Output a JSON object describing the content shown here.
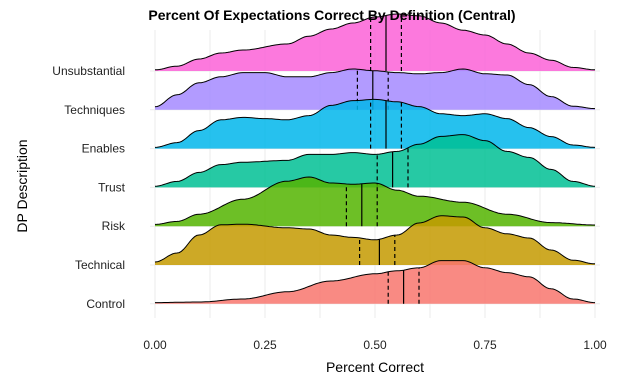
{
  "chart_data": {
    "type": "ridgeline",
    "title": "Percent Of Expectations Correct By Definition (Central)",
    "xlabel": "Percent Correct",
    "ylabel": "DP Description",
    "xlim": [
      0,
      1
    ],
    "x_ticks": [
      "0.00",
      "0.25",
      "0.50",
      "0.75",
      "1.00"
    ],
    "x_tick_values": [
      0,
      0.25,
      0.5,
      0.75,
      1.0
    ],
    "grid": true,
    "legend": "none",
    "categories": [
      "Control",
      "Technical",
      "Risk",
      "Trust",
      "Enables",
      "Techniques",
      "Unsubstantial"
    ],
    "series": [
      {
        "name": "Control",
        "color": "#F8766D",
        "quantiles": [
          0.53,
          0.565,
          0.6
        ],
        "density": [
          [
            0,
            0.02
          ],
          [
            0.1,
            0.03
          ],
          [
            0.2,
            0.08
          ],
          [
            0.3,
            0.2
          ],
          [
            0.4,
            0.38
          ],
          [
            0.5,
            0.5
          ],
          [
            0.55,
            0.55
          ],
          [
            0.6,
            0.6
          ],
          [
            0.65,
            0.72
          ],
          [
            0.7,
            0.72
          ],
          [
            0.75,
            0.6
          ],
          [
            0.8,
            0.52
          ],
          [
            0.85,
            0.45
          ],
          [
            0.9,
            0.25
          ],
          [
            0.95,
            0.08
          ],
          [
            1.0,
            0.02
          ]
        ]
      },
      {
        "name": "Technical",
        "color": "#C49A00",
        "quantiles": [
          0.465,
          0.51,
          0.545
        ],
        "density": [
          [
            0,
            0.05
          ],
          [
            0.05,
            0.2
          ],
          [
            0.1,
            0.5
          ],
          [
            0.15,
            0.67
          ],
          [
            0.2,
            0.68
          ],
          [
            0.3,
            0.62
          ],
          [
            0.35,
            0.6
          ],
          [
            0.4,
            0.5
          ],
          [
            0.45,
            0.46
          ],
          [
            0.5,
            0.42
          ],
          [
            0.55,
            0.5
          ],
          [
            0.6,
            0.7
          ],
          [
            0.65,
            0.82
          ],
          [
            0.7,
            0.8
          ],
          [
            0.75,
            0.62
          ],
          [
            0.8,
            0.52
          ],
          [
            0.85,
            0.45
          ],
          [
            0.9,
            0.25
          ],
          [
            0.95,
            0.08
          ],
          [
            1.0,
            0.02
          ]
        ]
      },
      {
        "name": "Risk",
        "color": "#53B400",
        "quantiles": [
          0.435,
          0.47,
          0.505
        ],
        "density": [
          [
            0,
            0.03
          ],
          [
            0.05,
            0.08
          ],
          [
            0.1,
            0.2
          ],
          [
            0.2,
            0.45
          ],
          [
            0.3,
            0.75
          ],
          [
            0.35,
            0.82
          ],
          [
            0.4,
            0.72
          ],
          [
            0.45,
            0.7
          ],
          [
            0.5,
            0.72
          ],
          [
            0.55,
            0.6
          ],
          [
            0.6,
            0.5
          ],
          [
            0.7,
            0.4
          ],
          [
            0.8,
            0.2
          ],
          [
            0.9,
            0.06
          ],
          [
            1.0,
            0.02
          ]
        ]
      },
      {
        "name": "Trust",
        "color": "#00C094",
        "quantiles": [
          0.505,
          0.54,
          0.575
        ],
        "density": [
          [
            0,
            0.02
          ],
          [
            0.05,
            0.1
          ],
          [
            0.1,
            0.25
          ],
          [
            0.15,
            0.38
          ],
          [
            0.2,
            0.42
          ],
          [
            0.3,
            0.45
          ],
          [
            0.35,
            0.55
          ],
          [
            0.4,
            0.55
          ],
          [
            0.45,
            0.58
          ],
          [
            0.5,
            0.55
          ],
          [
            0.55,
            0.6
          ],
          [
            0.6,
            0.72
          ],
          [
            0.65,
            0.85
          ],
          [
            0.7,
            0.88
          ],
          [
            0.75,
            0.78
          ],
          [
            0.8,
            0.6
          ],
          [
            0.85,
            0.5
          ],
          [
            0.9,
            0.3
          ],
          [
            0.95,
            0.1
          ],
          [
            1.0,
            0.02
          ]
        ]
      },
      {
        "name": "Enables",
        "color": "#00B6EB",
        "quantiles": [
          0.49,
          0.525,
          0.56
        ],
        "density": [
          [
            0,
            0.02
          ],
          [
            0.05,
            0.1
          ],
          [
            0.1,
            0.3
          ],
          [
            0.15,
            0.48
          ],
          [
            0.2,
            0.52
          ],
          [
            0.25,
            0.5
          ],
          [
            0.3,
            0.48
          ],
          [
            0.35,
            0.55
          ],
          [
            0.4,
            0.72
          ],
          [
            0.45,
            0.8
          ],
          [
            0.5,
            0.82
          ],
          [
            0.55,
            0.78
          ],
          [
            0.6,
            0.7
          ],
          [
            0.65,
            0.58
          ],
          [
            0.7,
            0.55
          ],
          [
            0.75,
            0.58
          ],
          [
            0.8,
            0.5
          ],
          [
            0.85,
            0.35
          ],
          [
            0.9,
            0.2
          ],
          [
            0.95,
            0.06
          ],
          [
            1.0,
            0.02
          ]
        ]
      },
      {
        "name": "Techniques",
        "color": "#A58AFF",
        "quantiles": [
          0.46,
          0.495,
          0.53
        ],
        "density": [
          [
            0,
            0.05
          ],
          [
            0.05,
            0.25
          ],
          [
            0.1,
            0.45
          ],
          [
            0.15,
            0.55
          ],
          [
            0.2,
            0.62
          ],
          [
            0.25,
            0.62
          ],
          [
            0.3,
            0.55
          ],
          [
            0.35,
            0.55
          ],
          [
            0.4,
            0.62
          ],
          [
            0.45,
            0.68
          ],
          [
            0.5,
            0.65
          ],
          [
            0.55,
            0.62
          ],
          [
            0.6,
            0.6
          ],
          [
            0.65,
            0.62
          ],
          [
            0.7,
            0.68
          ],
          [
            0.75,
            0.6
          ],
          [
            0.8,
            0.58
          ],
          [
            0.85,
            0.42
          ],
          [
            0.9,
            0.22
          ],
          [
            0.95,
            0.06
          ],
          [
            1.0,
            0.02
          ]
        ]
      },
      {
        "name": "Unsubstantial",
        "color": "#FB61D7",
        "quantiles": [
          0.49,
          0.525,
          0.56
        ],
        "density": [
          [
            0,
            0.02
          ],
          [
            0.05,
            0.08
          ],
          [
            0.1,
            0.2
          ],
          [
            0.15,
            0.3
          ],
          [
            0.2,
            0.35
          ],
          [
            0.3,
            0.45
          ],
          [
            0.35,
            0.58
          ],
          [
            0.4,
            0.7
          ],
          [
            0.45,
            0.8
          ],
          [
            0.5,
            0.9
          ],
          [
            0.55,
            0.95
          ],
          [
            0.6,
            0.92
          ],
          [
            0.65,
            0.8
          ],
          [
            0.7,
            0.68
          ],
          [
            0.75,
            0.6
          ],
          [
            0.8,
            0.45
          ],
          [
            0.85,
            0.3
          ],
          [
            0.9,
            0.18
          ],
          [
            0.95,
            0.06
          ],
          [
            1.0,
            0.02
          ]
        ]
      }
    ]
  }
}
